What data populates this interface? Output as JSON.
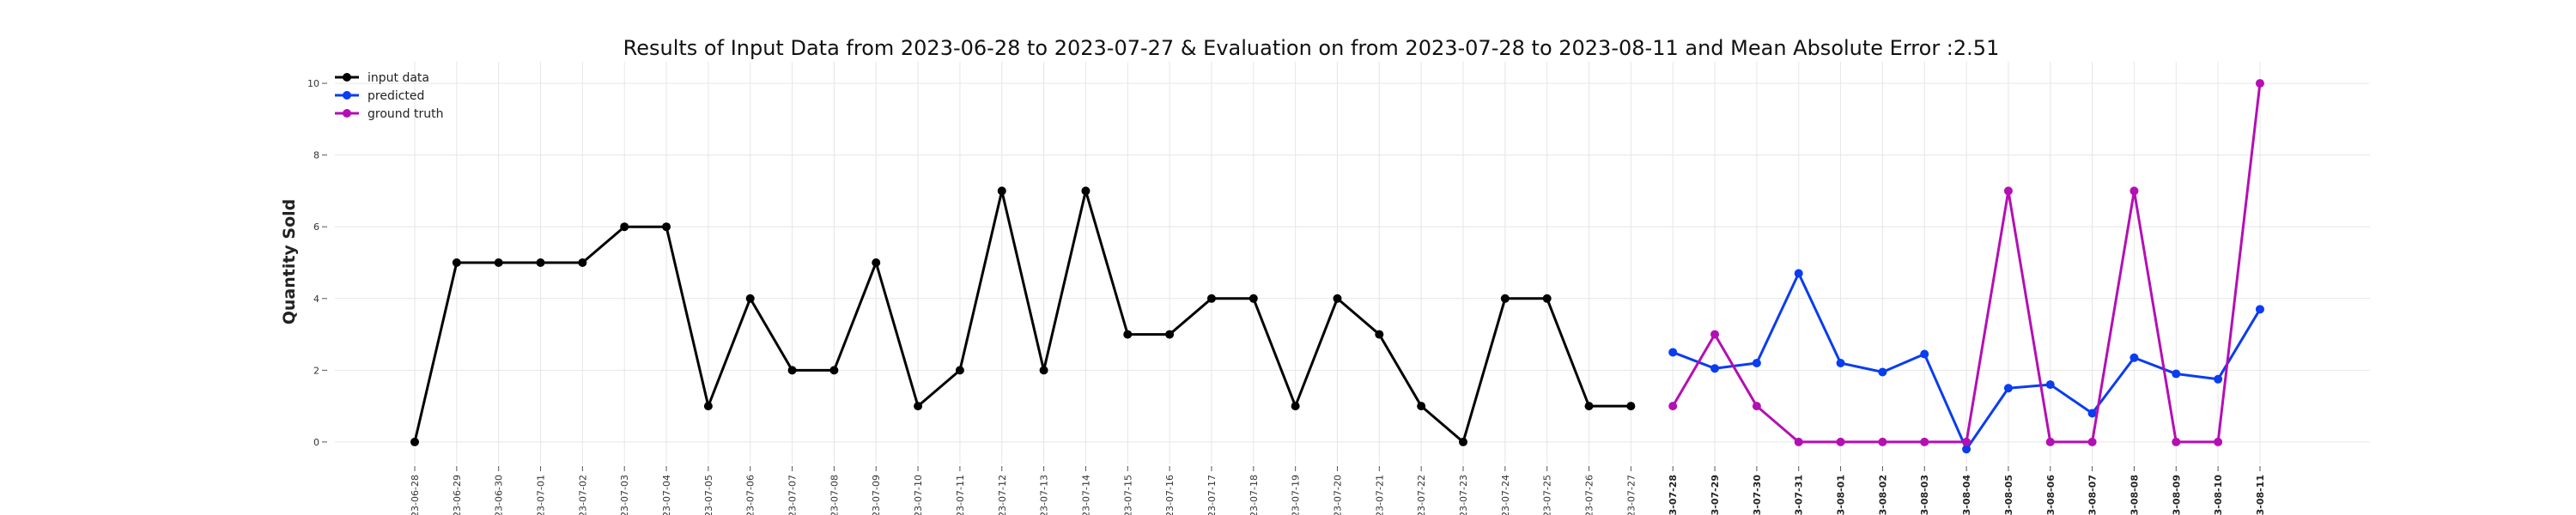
{
  "chart_data": {
    "type": "line",
    "title": "Results of Input Data from 2023-06-28 to 2023-07-27 & Evaluation on from 2023-07-28 to 2023-08-11 and Mean Absolute Error  :2.51",
    "xlabel": "",
    "ylabel": "Quantity Sold",
    "ylim": [
      -0.6,
      10.6
    ],
    "yticks": [
      0,
      2,
      4,
      6,
      8,
      10
    ],
    "grid": true,
    "legend_position": "top-left",
    "x": [
      "2023-06-28",
      "2023-06-29",
      "2023-06-30",
      "2023-07-01",
      "2023-07-02",
      "2023-07-03",
      "2023-07-04",
      "2023-07-05",
      "2023-07-06",
      "2023-07-07",
      "2023-07-08",
      "2023-07-09",
      "2023-07-10",
      "2023-07-11",
      "2023-07-12",
      "2023-07-13",
      "2023-07-14",
      "2023-07-15",
      "2023-07-16",
      "2023-07-17",
      "2023-07-18",
      "2023-07-19",
      "2023-07-20",
      "2023-07-21",
      "2023-07-22",
      "2023-07-23",
      "2023-07-24",
      "2023-07-25",
      "2023-07-26",
      "2023-07-27",
      "2023-07-28",
      "2023-07-29",
      "2023-07-30",
      "2023-07-31",
      "2023-08-01",
      "2023-08-02",
      "2023-08-03",
      "2023-08-04",
      "2023-08-05",
      "2023-08-06",
      "2023-08-07",
      "2023-08-08",
      "2023-08-09",
      "2023-08-10",
      "2023-08-11"
    ],
    "tick_labels": [
      "-23-06-28",
      "-23-06-29",
      "-23-06-30",
      "-23-07-01",
      "-23-07-02",
      "-23-07-03",
      "-23-07-04",
      "-23-07-05",
      "-23-07-06",
      "-23-07-07",
      "-23-07-08",
      "-23-07-09",
      "-23-07-10",
      "-23-07-11",
      "-23-07-12",
      "-23-07-13",
      "-23-07-14",
      "-23-07-15",
      "-23-07-16",
      "-23-07-17",
      "-23-07-18",
      "-23-07-19",
      "-23-07-20",
      "-23-07-21",
      "-23-07-22",
      "-23-07-23",
      "-23-07-24",
      "-23-07-25",
      "-23-07-26",
      "-23-07-27",
      "-23-07-28",
      "-23-07-29",
      "-23-07-30",
      "-23-07-31",
      "-23-08-01",
      "-23-08-02",
      "-23-08-03",
      "-23-08-04",
      "-23-08-05",
      "-23-08-06",
      "-23-08-07",
      "-23-08-08",
      "-23-08-09",
      "-23-08-10",
      "-23-08-11"
    ],
    "bold_tick_from": "2023-07-28",
    "series": [
      {
        "name": "input data",
        "color": "#000000",
        "x": [
          "2023-06-28",
          "2023-06-29",
          "2023-06-30",
          "2023-07-01",
          "2023-07-02",
          "2023-07-03",
          "2023-07-04",
          "2023-07-05",
          "2023-07-06",
          "2023-07-07",
          "2023-07-08",
          "2023-07-09",
          "2023-07-10",
          "2023-07-11",
          "2023-07-12",
          "2023-07-13",
          "2023-07-14",
          "2023-07-15",
          "2023-07-16",
          "2023-07-17",
          "2023-07-18",
          "2023-07-19",
          "2023-07-20",
          "2023-07-21",
          "2023-07-22",
          "2023-07-23",
          "2023-07-24",
          "2023-07-25",
          "2023-07-26",
          "2023-07-27"
        ],
        "values": [
          0,
          5,
          5,
          5,
          5,
          6,
          6,
          1,
          4,
          2,
          2,
          5,
          1,
          2,
          7,
          2,
          7,
          3,
          3,
          4,
          4,
          1,
          4,
          3,
          1,
          0,
          4,
          4,
          1,
          1
        ]
      },
      {
        "name": "predicted",
        "color": "#0a3cf0",
        "x": [
          "2023-07-28",
          "2023-07-29",
          "2023-07-30",
          "2023-07-31",
          "2023-08-01",
          "2023-08-02",
          "2023-08-03",
          "2023-08-04",
          "2023-08-05",
          "2023-08-06",
          "2023-08-07",
          "2023-08-08",
          "2023-08-09",
          "2023-08-10",
          "2023-08-11"
        ],
        "values": [
          2.5,
          2.05,
          2.2,
          4.7,
          2.2,
          1.95,
          2.45,
          -0.2,
          1.5,
          1.6,
          0.8,
          2.35,
          1.9,
          1.75,
          3.7
        ]
      },
      {
        "name": "ground truth",
        "color": "#b40fb4",
        "x": [
          "2023-07-28",
          "2023-07-29",
          "2023-07-30",
          "2023-07-31",
          "2023-08-01",
          "2023-08-02",
          "2023-08-03",
          "2023-08-04",
          "2023-08-05",
          "2023-08-06",
          "2023-08-07",
          "2023-08-08",
          "2023-08-09",
          "2023-08-10",
          "2023-08-11"
        ],
        "values": [
          1,
          3,
          1,
          0,
          0,
          0,
          0,
          0,
          7,
          0,
          0,
          7,
          0,
          0,
          10
        ]
      }
    ]
  }
}
